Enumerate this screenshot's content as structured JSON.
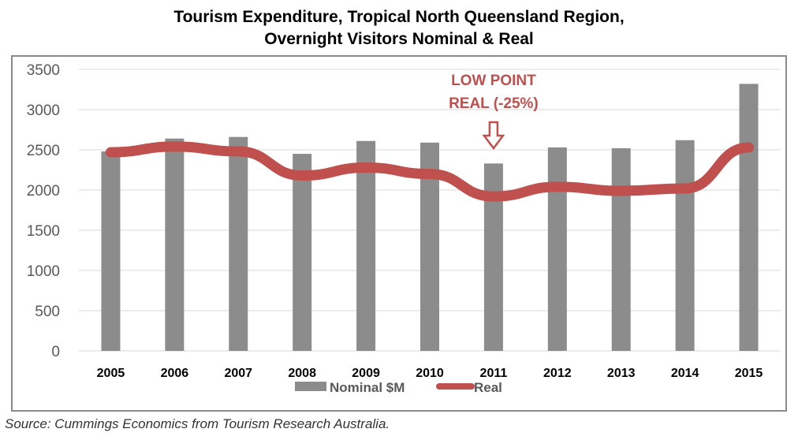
{
  "colors": {
    "nominal": "#8c8c8c",
    "real": "#c0504d",
    "annotation": "#c0504d"
  },
  "chart_data": {
    "type": "bar",
    "title": "Tourism Expenditure, Tropical North Queensland Region,",
    "subtitle": "Overnight Visitors Nominal & Real",
    "categories": [
      "2005",
      "2006",
      "2007",
      "2008",
      "2009",
      "2010",
      "2011",
      "2012",
      "2013",
      "2014",
      "2015"
    ],
    "series": [
      {
        "name": "Nominal $M",
        "kind": "bar",
        "values": [
          2480,
          2640,
          2660,
          2450,
          2610,
          2590,
          2330,
          2530,
          2520,
          2620,
          3320
        ]
      },
      {
        "name": "Real",
        "kind": "line",
        "values": [
          2470,
          2540,
          2480,
          2180,
          2280,
          2200,
          1920,
          2040,
          1990,
          2020,
          2530
        ]
      }
    ],
    "ylim": [
      0,
      3500
    ],
    "yticks": [
      0,
      500,
      1000,
      1500,
      2000,
      2500,
      3000,
      3500
    ],
    "grid": true,
    "legend": "bottom",
    "annotation": {
      "line1": "LOW POINT",
      "line2": "REAL (-25%)",
      "category": "2011"
    }
  },
  "source": "Source: Cummings Economics from Tourism Research Australia."
}
